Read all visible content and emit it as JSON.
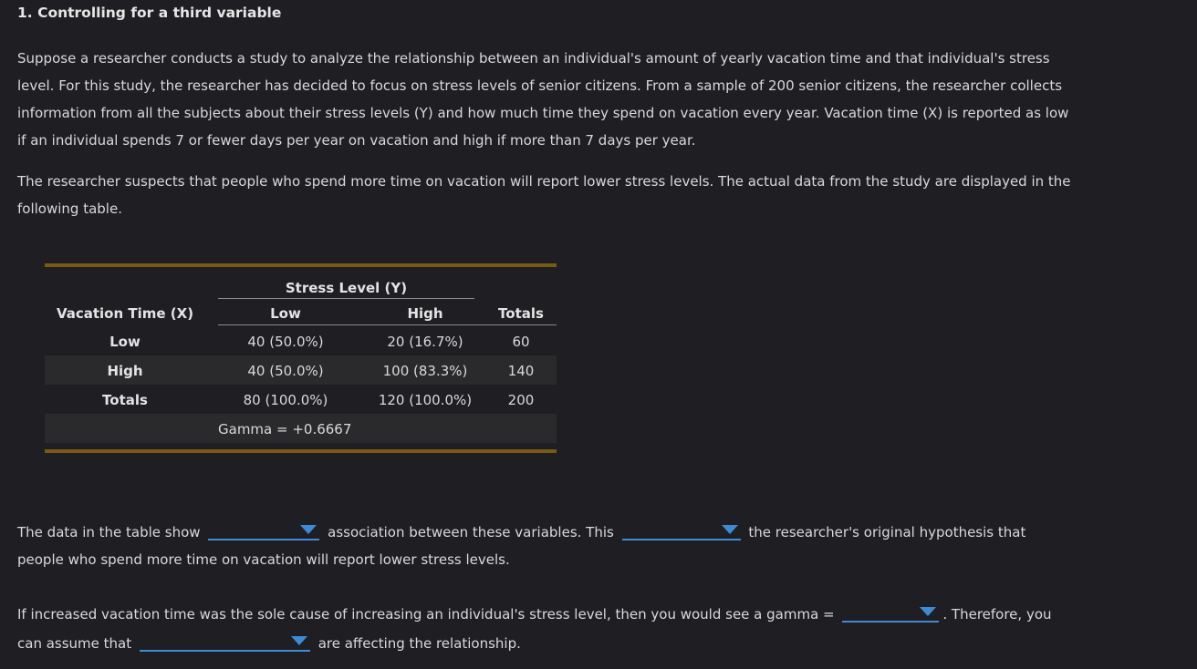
{
  "title": "1. Controlling for a third variable",
  "paragraph1": "Suppose a researcher conducts a study to analyze the relationship between an individual's amount of yearly vacation time and that individual's stress level. For this study, the researcher has decided to focus on stress levels of senior citizens. From a sample of 200 senior citizens, the researcher collects information from all the subjects about their stress levels (Y) and how much time they spend on vacation every year. Vacation time (X) is reported as low if an individual spends 7 or fewer days per year on vacation and high if more than 7 days per year.",
  "paragraph2": "The researcher suspects that people who spend more time on vacation will report lower stress levels. The actual data from the study are displayed in the following table.",
  "table": {
    "group_header": "Stress Level (Y)",
    "row_header": "Vacation Time (X)",
    "col_low": "Low",
    "col_high": "High",
    "col_totals": "Totals",
    "rows": [
      {
        "label": "Low",
        "low": "40 (50.0%)",
        "high": "20 (16.7%)",
        "total": "60"
      },
      {
        "label": "High",
        "low": "40 (50.0%)",
        "high": "100 (83.3%)",
        "total": "140"
      },
      {
        "label": "Totals",
        "low": "80 (100.0%)",
        "high": "120 (100.0%)",
        "total": "200"
      }
    ],
    "gamma": "Gamma = +0.6667"
  },
  "q1": {
    "part1": "The data in the table show",
    "part2": "association between these variables. This",
    "part3": "the researcher's original hypothesis that people who spend more time on vacation will report lower stress levels."
  },
  "q2": {
    "part1": "If increased vacation time was the sole cause of increasing an individual's stress level, then you would see a gamma =",
    "part2": ". Therefore, you can assume that",
    "part3": "are affecting the relationship."
  },
  "colors": {
    "background": "#1f1f23",
    "accent_rule": "#7a5a12",
    "dropdown": "#3b8bd9"
  }
}
